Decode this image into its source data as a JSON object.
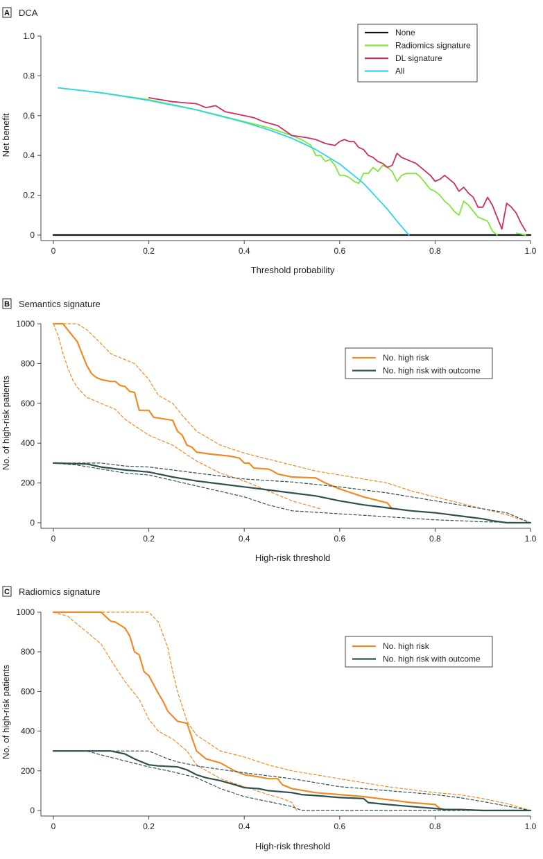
{
  "chart_data": [
    {
      "id": "A",
      "type": "line",
      "panel_label": "A",
      "title": "DCA",
      "xlabel": "Threshold probability",
      "ylabel": "Net benefit",
      "xlim": [
        0,
        1
      ],
      "ylim": [
        0,
        1
      ],
      "xticks": [
        "0",
        "0.2",
        "0.4",
        "0.6",
        "0.8",
        "1.0"
      ],
      "yticks": [
        "0",
        "0.2",
        "0.4",
        "0.6",
        "0.8",
        "1.0"
      ],
      "legend_position": "top-right",
      "series": [
        {
          "name": "None",
          "color": "#111111",
          "dashed": false,
          "width": 2.2,
          "x": [
            0,
            1
          ],
          "y": [
            0,
            0
          ]
        },
        {
          "name": "Radiomics signature",
          "color": "#7ee83a",
          "dashed": false,
          "width": 1.8,
          "x": [
            0.01,
            0.1,
            0.2,
            0.3,
            0.4,
            0.45,
            0.5,
            0.52,
            0.54,
            0.55,
            0.56,
            0.57,
            0.58,
            0.59,
            0.6,
            0.61,
            0.62,
            0.63,
            0.64,
            0.65,
            0.66,
            0.67,
            0.68,
            0.69,
            0.7,
            0.71,
            0.72,
            0.73,
            0.74,
            0.75,
            0.76,
            0.77,
            0.78,
            0.79,
            0.8,
            0.81,
            0.82,
            0.83,
            0.84,
            0.85,
            0.86,
            0.87,
            0.88,
            0.89,
            0.9,
            0.91,
            0.92,
            0.925,
            0.93
          ],
          "y": [
            0.74,
            0.715,
            0.68,
            0.63,
            0.57,
            0.54,
            0.5,
            0.48,
            0.45,
            0.4,
            0.4,
            0.37,
            0.38,
            0.35,
            0.3,
            0.3,
            0.29,
            0.27,
            0.26,
            0.31,
            0.31,
            0.34,
            0.32,
            0.35,
            0.34,
            0.32,
            0.27,
            0.3,
            0.31,
            0.31,
            0.31,
            0.29,
            0.26,
            0.23,
            0.22,
            0.2,
            0.17,
            0.15,
            0.12,
            0.1,
            0.17,
            0.15,
            0.12,
            0.09,
            0.08,
            0.07,
            0.02,
            0.01,
            0.0
          ]
        },
        {
          "name": "Radiomics signature (tail)",
          "color": "#7ee83a",
          "dashed": false,
          "width": 1.8,
          "legend": false,
          "x": [
            0.97,
            0.99
          ],
          "y": [
            0.01,
            0.0
          ]
        },
        {
          "name": "DL signature",
          "color": "#cc2d62",
          "dashed": false,
          "width": 1.8,
          "x": [
            0.2,
            0.25,
            0.3,
            0.32,
            0.34,
            0.36,
            0.38,
            0.4,
            0.42,
            0.44,
            0.47,
            0.5,
            0.53,
            0.55,
            0.57,
            0.59,
            0.6,
            0.61,
            0.62,
            0.63,
            0.64,
            0.65,
            0.66,
            0.67,
            0.68,
            0.69,
            0.7,
            0.71,
            0.72,
            0.73,
            0.74,
            0.75,
            0.76,
            0.77,
            0.78,
            0.79,
            0.8,
            0.81,
            0.82,
            0.83,
            0.84,
            0.85,
            0.86,
            0.87,
            0.88,
            0.89,
            0.9,
            0.91,
            0.92,
            0.93,
            0.94,
            0.95,
            0.96,
            0.97,
            0.98,
            0.99
          ],
          "y": [
            0.69,
            0.67,
            0.66,
            0.64,
            0.65,
            0.62,
            0.61,
            0.6,
            0.59,
            0.57,
            0.55,
            0.5,
            0.49,
            0.48,
            0.46,
            0.45,
            0.47,
            0.48,
            0.47,
            0.47,
            0.44,
            0.43,
            0.4,
            0.39,
            0.37,
            0.36,
            0.34,
            0.35,
            0.41,
            0.39,
            0.38,
            0.37,
            0.36,
            0.34,
            0.32,
            0.3,
            0.27,
            0.28,
            0.3,
            0.28,
            0.26,
            0.22,
            0.24,
            0.21,
            0.19,
            0.14,
            0.14,
            0.19,
            0.15,
            0.09,
            0.03,
            0.16,
            0.14,
            0.11,
            0.06,
            0.02
          ]
        },
        {
          "name": "All",
          "color": "#29d6e8",
          "dashed": false,
          "width": 1.8,
          "x": [
            0.01,
            0.1,
            0.2,
            0.3,
            0.4,
            0.45,
            0.5,
            0.55,
            0.6,
            0.65,
            0.7,
            0.72,
            0.745
          ],
          "y": [
            0.74,
            0.715,
            0.677,
            0.629,
            0.567,
            0.53,
            0.486,
            0.43,
            0.357,
            0.26,
            0.13,
            0.07,
            0.0
          ]
        }
      ]
    },
    {
      "id": "B",
      "type": "line",
      "panel_label": "B",
      "title": "Semantics signature",
      "xlabel": "High-risk threshold",
      "ylabel": "No. of high-risk patients",
      "xlim": [
        0,
        1
      ],
      "ylim": [
        0,
        1000
      ],
      "xticks": [
        "0",
        "0.2",
        "0.4",
        "0.6",
        "0.8",
        "1.0"
      ],
      "yticks": [
        "0",
        "200",
        "400",
        "600",
        "800",
        "1000"
      ],
      "legend_position": "right",
      "series": [
        {
          "name": "No. high risk",
          "color": "#f08a24",
          "dashed": false,
          "width": 2.2,
          "x": [
            0,
            0.02,
            0.03,
            0.05,
            0.06,
            0.07,
            0.08,
            0.09,
            0.1,
            0.12,
            0.13,
            0.14,
            0.15,
            0.16,
            0.17,
            0.18,
            0.2,
            0.21,
            0.25,
            0.26,
            0.27,
            0.28,
            0.29,
            0.3,
            0.33,
            0.37,
            0.39,
            0.4,
            0.41,
            0.42,
            0.45,
            0.46,
            0.47,
            0.5,
            0.55,
            0.57,
            0.6,
            0.65,
            0.7,
            0.71
          ],
          "y": [
            1000,
            1000,
            970,
            910,
            850,
            790,
            750,
            730,
            720,
            710,
            710,
            690,
            685,
            660,
            655,
            565,
            565,
            530,
            515,
            460,
            440,
            390,
            380,
            355,
            345,
            335,
            325,
            300,
            300,
            275,
            270,
            260,
            245,
            230,
            225,
            200,
            170,
            130,
            100,
            70
          ]
        },
        {
          "name": "No. high risk upper",
          "color": "#f08a24",
          "dashed": true,
          "width": 1.2,
          "legend": false,
          "x": [
            0,
            0.05,
            0.07,
            0.1,
            0.12,
            0.15,
            0.17,
            0.2,
            0.22,
            0.25,
            0.27,
            0.3,
            0.35,
            0.4,
            0.45,
            0.5,
            0.55,
            0.6,
            0.65,
            0.7,
            0.75,
            0.8,
            0.85,
            0.9,
            0.95,
            1.0
          ],
          "y": [
            1000,
            1000,
            970,
            900,
            850,
            820,
            800,
            720,
            640,
            600,
            540,
            460,
            390,
            350,
            320,
            290,
            260,
            240,
            220,
            200,
            160,
            130,
            100,
            70,
            40,
            0
          ]
        },
        {
          "name": "No. high risk lower",
          "color": "#f08a24",
          "dashed": true,
          "width": 1.2,
          "legend": false,
          "x": [
            0,
            0.01,
            0.02,
            0.03,
            0.04,
            0.05,
            0.07,
            0.1,
            0.13,
            0.15,
            0.2,
            0.25,
            0.3,
            0.35,
            0.4,
            0.45,
            0.5,
            0.53,
            0.56
          ],
          "y": [
            1000,
            940,
            850,
            780,
            720,
            680,
            630,
            600,
            570,
            520,
            440,
            390,
            310,
            250,
            210,
            160,
            110,
            90,
            70
          ]
        },
        {
          "name": "No. high risk with outcome",
          "color": "#2f4f4f",
          "dashed": false,
          "width": 2.2,
          "x": [
            0,
            0.07,
            0.1,
            0.15,
            0.2,
            0.25,
            0.3,
            0.35,
            0.4,
            0.45,
            0.5,
            0.55,
            0.6,
            0.65,
            0.7,
            0.75,
            0.8,
            0.85,
            0.9,
            0.92,
            0.95,
            1.0
          ],
          "y": [
            300,
            295,
            280,
            265,
            255,
            230,
            210,
            195,
            180,
            165,
            150,
            135,
            110,
            90,
            75,
            60,
            50,
            35,
            20,
            10,
            0,
            0
          ]
        },
        {
          "name": "No. high risk with outcome upper",
          "color": "#2f4f4f",
          "dashed": true,
          "width": 1.2,
          "legend": false,
          "x": [
            0,
            0.05,
            0.1,
            0.15,
            0.2,
            0.3,
            0.4,
            0.5,
            0.6,
            0.7,
            0.8,
            0.9,
            0.95,
            1.0
          ],
          "y": [
            300,
            300,
            300,
            285,
            280,
            250,
            220,
            205,
            180,
            150,
            110,
            70,
            50,
            0
          ]
        },
        {
          "name": "No. high risk with outcome lower",
          "color": "#2f4f4f",
          "dashed": true,
          "width": 1.2,
          "legend": false,
          "x": [
            0,
            0.05,
            0.1,
            0.15,
            0.2,
            0.3,
            0.4,
            0.45,
            0.5,
            0.6,
            0.7,
            0.8,
            0.9,
            1.0
          ],
          "y": [
            300,
            290,
            270,
            250,
            240,
            185,
            130,
            90,
            60,
            45,
            30,
            15,
            5,
            0
          ]
        }
      ]
    },
    {
      "id": "C",
      "type": "line",
      "panel_label": "C",
      "title": "Radiomics signature",
      "xlabel": "High-risk threshold",
      "ylabel": "No. of high-risk patients",
      "xlim": [
        0,
        1
      ],
      "ylim": [
        0,
        1000
      ],
      "xticks": [
        "0",
        "0.2",
        "0.4",
        "0.6",
        "0.8",
        "1.0"
      ],
      "yticks": [
        "0",
        "200",
        "400",
        "600",
        "800",
        "1000"
      ],
      "legend_position": "right",
      "series": [
        {
          "name": "No. high risk",
          "color": "#f08a24",
          "dashed": false,
          "width": 2.2,
          "x": [
            0,
            0.1,
            0.12,
            0.13,
            0.15,
            0.16,
            0.17,
            0.18,
            0.19,
            0.2,
            0.22,
            0.23,
            0.24,
            0.26,
            0.28,
            0.3,
            0.32,
            0.35,
            0.38,
            0.4,
            0.43,
            0.45,
            0.47,
            0.48,
            0.49,
            0.5,
            0.55,
            0.6,
            0.65,
            0.7,
            0.75,
            0.8,
            0.81,
            0.82,
            0.85,
            0.9,
            1.0
          ],
          "y": [
            1000,
            1000,
            955,
            950,
            920,
            880,
            800,
            785,
            700,
            680,
            590,
            550,
            500,
            450,
            440,
            300,
            260,
            240,
            200,
            180,
            170,
            160,
            160,
            130,
            120,
            110,
            90,
            80,
            70,
            55,
            40,
            30,
            10,
            5,
            5,
            0,
            0
          ]
        },
        {
          "name": "No. high risk upper",
          "color": "#f08a24",
          "dashed": true,
          "width": 1.2,
          "legend": false,
          "x": [
            0,
            0.05,
            0.2,
            0.22,
            0.24,
            0.25,
            0.26,
            0.28,
            0.3,
            0.35,
            0.4,
            0.45,
            0.5,
            0.55,
            0.6,
            0.7,
            0.8,
            0.85,
            0.9,
            0.95,
            1.0
          ],
          "y": [
            1000,
            1000,
            1000,
            950,
            820,
            700,
            600,
            450,
            380,
            300,
            270,
            230,
            200,
            180,
            160,
            120,
            90,
            80,
            60,
            35,
            0
          ]
        },
        {
          "name": "No. high risk lower",
          "color": "#f08a24",
          "dashed": true,
          "width": 1.2,
          "legend": false,
          "x": [
            0,
            0.03,
            0.05,
            0.08,
            0.1,
            0.12,
            0.15,
            0.18,
            0.2,
            0.22,
            0.25,
            0.28,
            0.3,
            0.35,
            0.4,
            0.45,
            0.48,
            0.5,
            0.51
          ],
          "y": [
            1000,
            980,
            940,
            880,
            840,
            760,
            650,
            560,
            460,
            400,
            360,
            300,
            230,
            160,
            120,
            80,
            60,
            40,
            0
          ]
        },
        {
          "name": "No. high risk with outcome",
          "color": "#2f4f4f",
          "dashed": false,
          "width": 2.2,
          "x": [
            0,
            0.12,
            0.14,
            0.15,
            0.17,
            0.18,
            0.2,
            0.22,
            0.26,
            0.28,
            0.3,
            0.32,
            0.35,
            0.38,
            0.4,
            0.43,
            0.45,
            0.5,
            0.52,
            0.55,
            0.6,
            0.65,
            0.66,
            0.7,
            0.75,
            0.8,
            0.82,
            0.85,
            0.9,
            1.0
          ],
          "y": [
            300,
            300,
            290,
            285,
            260,
            250,
            230,
            225,
            220,
            205,
            180,
            165,
            150,
            130,
            115,
            110,
            100,
            90,
            80,
            75,
            65,
            60,
            40,
            30,
            20,
            10,
            5,
            5,
            0,
            0
          ]
        },
        {
          "name": "No. high risk with outcome upper",
          "color": "#2f4f4f",
          "dashed": true,
          "width": 1.2,
          "legend": false,
          "x": [
            0,
            0.1,
            0.2,
            0.22,
            0.24,
            0.26,
            0.3,
            0.4,
            0.5,
            0.6,
            0.7,
            0.8,
            0.85,
            0.9,
            1.0
          ],
          "y": [
            300,
            300,
            300,
            280,
            260,
            245,
            225,
            190,
            160,
            120,
            100,
            80,
            65,
            45,
            0
          ]
        },
        {
          "name": "No. high risk with outcome lower",
          "color": "#2f4f4f",
          "dashed": true,
          "width": 1.2,
          "legend": false,
          "x": [
            0,
            0.07,
            0.1,
            0.15,
            0.2,
            0.25,
            0.3,
            0.35,
            0.4,
            0.45,
            0.5,
            0.52,
            0.6,
            0.8,
            1.0
          ],
          "y": [
            300,
            300,
            280,
            250,
            220,
            195,
            165,
            110,
            70,
            45,
            20,
            0,
            0,
            0,
            0
          ]
        }
      ]
    }
  ]
}
